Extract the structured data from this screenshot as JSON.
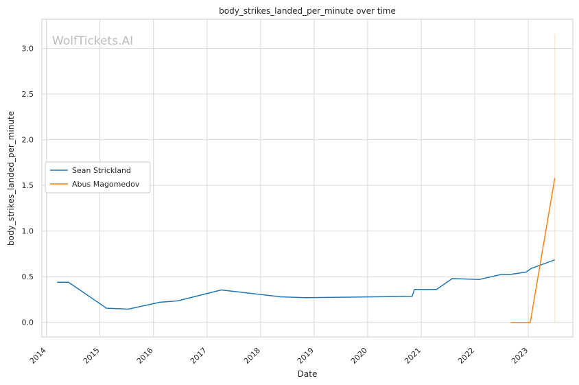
{
  "chart_data": {
    "type": "line",
    "title": "body_strikes_landed_per_minute over time",
    "xlabel": "Date",
    "ylabel": "body_strikes_landed_per_minute",
    "watermark": "WolfTickets.AI",
    "xlim": [
      "2013-12-01",
      "2023-11-01"
    ],
    "ylim": [
      -0.16,
      3.32
    ],
    "xticks": [
      "2014",
      "2015",
      "2016",
      "2017",
      "2018",
      "2019",
      "2020",
      "2021",
      "2022",
      "2023"
    ],
    "yticks": [
      "0.0",
      "0.5",
      "1.0",
      "1.5",
      "2.0",
      "2.5",
      "3.0"
    ],
    "grid": true,
    "legend": "center-left",
    "series": [
      {
        "name": "Sean Strickland",
        "color": "#1f77b4",
        "x": [
          "2014-03-15",
          "2014-06-01",
          "2015-02-15",
          "2015-07-15",
          "2016-02-15",
          "2016-06-15",
          "2017-04-08",
          "2018-05-15",
          "2018-11-01",
          "2020-10-31",
          "2020-11-15",
          "2021-04-15",
          "2021-08-01",
          "2022-02-01",
          "2022-07-01",
          "2022-09-01",
          "2022-12-17",
          "2023-01-21",
          "2023-07-01"
        ],
        "y": [
          0.44,
          0.44,
          0.155,
          0.145,
          0.22,
          0.235,
          0.355,
          0.28,
          0.27,
          0.285,
          0.36,
          0.36,
          0.48,
          0.47,
          0.525,
          0.525,
          0.55,
          0.59,
          0.685
        ]
      },
      {
        "name": "Abus Magomedov",
        "color": "#ff7f0e",
        "x": [
          "2022-09-03",
          "2023-01-15",
          "2023-07-01"
        ],
        "y": [
          0.0,
          0.0,
          1.58
        ]
      }
    ],
    "error_band": {
      "color": "#ff7f0e",
      "x": "2023-07-01",
      "y_low": 0.0,
      "y_high": 3.16
    }
  }
}
